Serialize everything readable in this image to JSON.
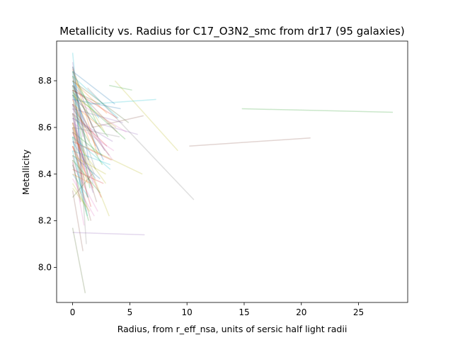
{
  "chart_data": {
    "type": "line",
    "title": "Metallicity vs. Radius for C17_O3N2_smc from dr17 (95 galaxies)",
    "xlabel": "Radius, from r_eff_nsa, units of sersic half light radii",
    "ylabel": "Metallicity",
    "xlim": [
      -1.4,
      29.3
    ],
    "ylim": [
      7.85,
      8.97
    ],
    "xticks": [
      0,
      5,
      10,
      15,
      20,
      25
    ],
    "yticks": [
      8.0,
      8.2,
      8.4,
      8.6,
      8.8
    ],
    "grid": false,
    "legend": false,
    "series_count": 95,
    "line_alpha": 0.25,
    "colors": [
      "#1f77b4",
      "#ff7f0e",
      "#2ca02c",
      "#d62728",
      "#9467bd",
      "#8c564b",
      "#e377c2",
      "#7f7f7f",
      "#bcbd22",
      "#17becf",
      "#556b2f"
    ],
    "series": [
      {
        "x": [
          14.8,
          28.0
        ],
        "y": [
          8.68,
          8.665
        ],
        "color": "#2ca02c"
      },
      {
        "x": [
          10.2,
          20.8
        ],
        "y": [
          8.52,
          8.555
        ],
        "color": "#8c564b"
      },
      {
        "x": [
          3.7,
          9.2
        ],
        "y": [
          8.8,
          8.5
        ],
        "color": "#bcbd22"
      },
      {
        "x": [
          1.3,
          10.6
        ],
        "y": [
          8.77,
          8.29
        ],
        "color": "#7f7f7f"
      },
      {
        "x": [
          0.0,
          6.3
        ],
        "y": [
          8.15,
          8.14
        ],
        "color": "#9467bd"
      },
      {
        "x": [
          1.5,
          7.3
        ],
        "y": [
          8.7,
          8.72
        ],
        "color": "#17becf"
      },
      {
        "x": [
          3.2,
          5.2
        ],
        "y": [
          8.78,
          8.76
        ],
        "color": "#2ca02c"
      },
      {
        "x": [
          1.0,
          6.1
        ],
        "y": [
          8.52,
          8.4
        ],
        "color": "#bcbd22"
      },
      {
        "x": [
          2.0,
          5.7
        ],
        "y": [
          8.62,
          8.57
        ],
        "color": "#9467bd"
      },
      {
        "x": [
          1.7,
          6.2
        ],
        "y": [
          8.6,
          8.65
        ],
        "color": "#8c564b"
      },
      {
        "x": [
          0.0,
          1.1
        ],
        "y": [
          8.17,
          7.89
        ],
        "color": "#556b2f"
      },
      {
        "x": [
          0.0,
          0.9
        ],
        "y": [
          8.33,
          8.07
        ],
        "color": "#8c564b"
      },
      {
        "x": [
          0.2,
          1.2
        ],
        "y": [
          8.78,
          8.1
        ],
        "color": "#7f7f7f"
      },
      {
        "x": [
          0.0,
          0.6
        ],
        "y": [
          8.92,
          8.62
        ],
        "color": "#17becf"
      },
      {
        "x": [
          0.1,
          3.2
        ],
        "y": [
          8.6,
          8.22
        ],
        "color": "#bcbd22"
      },
      {
        "x": [
          0.0,
          4.6
        ],
        "y": [
          8.75,
          8.55
        ],
        "color": "#2ca02c"
      },
      {
        "x": [
          0.0,
          1.6
        ],
        "y": [
          8.52,
          8.26
        ],
        "color": "#d62728"
      },
      {
        "x": [
          0.0,
          2.4
        ],
        "y": [
          8.48,
          8.38
        ],
        "color": "#1f77b4"
      },
      {
        "x": [
          0.0,
          3.5
        ],
        "y": [
          8.7,
          8.46
        ],
        "color": "#e377c2"
      },
      {
        "x": [
          0.0,
          2.0
        ],
        "y": [
          8.76,
          8.52
        ],
        "color": "#ff7f0e"
      },
      {
        "x": [
          0.0,
          4.9
        ],
        "y": [
          8.8,
          8.62
        ],
        "color": "#556b2f"
      },
      {
        "x": [
          0.0,
          1.8
        ],
        "y": [
          8.64,
          8.36
        ],
        "color": "#9467bd"
      },
      {
        "x": [
          0.0,
          0.7
        ],
        "y": [
          8.84,
          8.5
        ],
        "color": "#1f77b4"
      },
      {
        "x": [
          0.0,
          2.6
        ],
        "y": [
          8.58,
          8.48
        ],
        "color": "#2ca02c"
      },
      {
        "x": [
          0.0,
          3.9
        ],
        "y": [
          8.78,
          8.58
        ],
        "color": "#8c564b"
      },
      {
        "x": [
          0.0,
          1.4
        ],
        "y": [
          8.4,
          8.3
        ],
        "color": "#17becf"
      },
      {
        "x": [
          0.0,
          2.2
        ],
        "y": [
          8.85,
          8.48
        ],
        "color": "#ff7f0e"
      },
      {
        "x": [
          0.0,
          1.2
        ],
        "y": [
          8.56,
          8.24
        ],
        "color": "#7f7f7f"
      },
      {
        "x": [
          0.0,
          3.0
        ],
        "y": [
          8.66,
          8.52
        ],
        "color": "#d62728"
      },
      {
        "x": [
          0.0,
          4.2
        ],
        "y": [
          8.72,
          8.68
        ],
        "color": "#1f77b4"
      },
      {
        "x": [
          0.0,
          1.0
        ],
        "y": [
          8.45,
          8.18
        ],
        "color": "#e377c2"
      },
      {
        "x": [
          0.0,
          2.8
        ],
        "y": [
          8.82,
          8.58
        ],
        "color": "#bcbd22"
      },
      {
        "x": [
          0.0,
          1.7
        ],
        "y": [
          8.3,
          8.4
        ],
        "color": "#556b2f"
      },
      {
        "x": [
          0.0,
          0.9
        ],
        "y": [
          8.88,
          8.56
        ],
        "color": "#9467bd"
      },
      {
        "x": [
          0.0,
          3.3
        ],
        "y": [
          8.5,
          8.44
        ],
        "color": "#17becf"
      },
      {
        "x": [
          0.0,
          2.1
        ],
        "y": [
          8.62,
          8.28
        ],
        "color": "#8c564b"
      },
      {
        "x": [
          0.0,
          1.5
        ],
        "y": [
          8.78,
          8.34
        ],
        "color": "#2ca02c"
      },
      {
        "x": [
          0.0,
          2.5
        ],
        "y": [
          8.7,
          8.6
        ],
        "color": "#ff7f0e"
      },
      {
        "x": [
          0.0,
          1.1
        ],
        "y": [
          8.6,
          8.44
        ],
        "color": "#d62728"
      },
      {
        "x": [
          0.0,
          3.7
        ],
        "y": [
          8.84,
          8.7
        ],
        "color": "#1f77b4"
      },
      {
        "x": [
          0.0,
          1.9
        ],
        "y": [
          8.38,
          8.22
        ],
        "color": "#e377c2"
      },
      {
        "x": [
          0.0,
          0.8
        ],
        "y": [
          8.74,
          8.4
        ],
        "color": "#7f7f7f"
      },
      {
        "x": [
          0.0,
          2.9
        ],
        "y": [
          8.56,
          8.36
        ],
        "color": "#bcbd22"
      },
      {
        "x": [
          0.0,
          1.3
        ],
        "y": [
          8.66,
          8.3
        ],
        "color": "#556b2f"
      },
      {
        "x": [
          0.0,
          4.4
        ],
        "y": [
          8.68,
          8.62
        ],
        "color": "#9467bd"
      },
      {
        "x": [
          0.0,
          2.3
        ],
        "y": [
          8.8,
          8.64
        ],
        "color": "#17becf"
      },
      {
        "x": [
          0.0,
          1.6
        ],
        "y": [
          8.48,
          8.2
        ],
        "color": "#8c564b"
      },
      {
        "x": [
          0.0,
          3.1
        ],
        "y": [
          8.74,
          8.56
        ],
        "color": "#2ca02c"
      },
      {
        "x": [
          0.0,
          1.0
        ],
        "y": [
          8.52,
          8.38
        ],
        "color": "#ff7f0e"
      },
      {
        "x": [
          0.0,
          2.7
        ],
        "y": [
          8.42,
          8.36
        ],
        "color": "#d62728"
      },
      {
        "x": [
          0.0,
          1.4
        ],
        "y": [
          8.86,
          8.46
        ],
        "color": "#1f77b4"
      },
      {
        "x": [
          0.0,
          3.6
        ],
        "y": [
          8.62,
          8.5
        ],
        "color": "#e377c2"
      },
      {
        "x": [
          0.0,
          2.0
        ],
        "y": [
          8.7,
          8.42
        ],
        "color": "#7f7f7f"
      },
      {
        "x": [
          0.0,
          1.2
        ],
        "y": [
          8.36,
          8.26
        ],
        "color": "#bcbd22"
      },
      {
        "x": [
          0.0,
          2.4
        ],
        "y": [
          8.76,
          8.7
        ],
        "color": "#556b2f"
      },
      {
        "x": [
          0.0,
          1.8
        ],
        "y": [
          8.58,
          8.32
        ],
        "color": "#9467bd"
      },
      {
        "x": [
          0.0,
          4.0
        ],
        "y": [
          8.82,
          8.64
        ],
        "color": "#17becf"
      },
      {
        "x": [
          0.0,
          0.7
        ],
        "y": [
          8.46,
          8.28
        ],
        "color": "#8c564b"
      },
      {
        "x": [
          0.0,
          2.6
        ],
        "y": [
          8.66,
          8.44
        ],
        "color": "#2ca02c"
      },
      {
        "x": [
          0.0,
          1.5
        ],
        "y": [
          8.72,
          8.54
        ],
        "color": "#ff7f0e"
      },
      {
        "x": [
          0.0,
          3.4
        ],
        "y": [
          8.54,
          8.46
        ],
        "color": "#d62728"
      },
      {
        "x": [
          0.0,
          1.1
        ],
        "y": [
          8.8,
          8.6
        ],
        "color": "#1f77b4"
      },
      {
        "x": [
          0.0,
          2.2
        ],
        "y": [
          8.44,
          8.24
        ],
        "color": "#e377c2"
      },
      {
        "x": [
          0.0,
          1.7
        ],
        "y": [
          8.64,
          8.58
        ],
        "color": "#7f7f7f"
      },
      {
        "x": [
          0.0,
          3.8
        ],
        "y": [
          8.74,
          8.6
        ],
        "color": "#bcbd22"
      },
      {
        "x": [
          0.0,
          0.9
        ],
        "y": [
          8.6,
          8.34
        ],
        "color": "#556b2f"
      },
      {
        "x": [
          0.0,
          2.8
        ],
        "y": [
          8.78,
          8.5
        ],
        "color": "#9467bd"
      },
      {
        "x": [
          0.0,
          1.3
        ],
        "y": [
          8.5,
          8.22
        ],
        "color": "#17becf"
      },
      {
        "x": [
          0.0,
          3.2
        ],
        "y": [
          8.68,
          8.48
        ],
        "color": "#8c564b"
      },
      {
        "x": [
          0.0,
          2.1
        ],
        "y": [
          8.84,
          8.62
        ],
        "color": "#2ca02c"
      },
      {
        "x": [
          0.0,
          1.6
        ],
        "y": [
          8.4,
          8.36
        ],
        "color": "#ff7f0e"
      },
      {
        "x": [
          0.0,
          2.5
        ],
        "y": [
          8.58,
          8.3
        ],
        "color": "#d62728"
      },
      {
        "x": [
          0.0,
          1.0
        ],
        "y": [
          8.76,
          8.44
        ],
        "color": "#1f77b4"
      },
      {
        "x": [
          0.0,
          4.7
        ],
        "y": [
          8.72,
          8.58
        ],
        "color": "#e377c2"
      },
      {
        "x": [
          0.0,
          1.9
        ],
        "y": [
          8.62,
          8.4
        ],
        "color": "#7f7f7f"
      },
      {
        "x": [
          0.0,
          2.9
        ],
        "y": [
          8.48,
          8.4
        ],
        "color": "#bcbd22"
      },
      {
        "x": [
          0.0,
          1.2
        ],
        "y": [
          8.82,
          8.52
        ],
        "color": "#556b2f"
      },
      {
        "x": [
          0.0,
          3.5
        ],
        "y": [
          8.64,
          8.54
        ],
        "color": "#9467bd"
      },
      {
        "x": [
          0.0,
          0.8
        ],
        "y": [
          8.56,
          8.32
        ],
        "color": "#17becf"
      },
      {
        "x": [
          0.0,
          2.3
        ],
        "y": [
          8.7,
          8.5
        ],
        "color": "#8c564b"
      },
      {
        "x": [
          0.0,
          1.4
        ],
        "y": [
          8.44,
          8.2
        ],
        "color": "#2ca02c"
      },
      {
        "x": [
          0.0,
          3.0
        ],
        "y": [
          8.8,
          8.66
        ],
        "color": "#ff7f0e"
      },
      {
        "x": [
          0.0,
          1.8
        ],
        "y": [
          8.52,
          8.34
        ],
        "color": "#d62728"
      },
      {
        "x": [
          0.0,
          2.7
        ],
        "y": [
          8.74,
          8.46
        ],
        "color": "#1f77b4"
      },
      {
        "x": [
          0.0,
          1.1
        ],
        "y": [
          8.66,
          8.42
        ],
        "color": "#e377c2"
      },
      {
        "x": [
          0.0,
          4.1
        ],
        "y": [
          8.6,
          8.56
        ],
        "color": "#7f7f7f"
      },
      {
        "x": [
          0.0,
          1.5
        ],
        "y": [
          8.34,
          8.24
        ],
        "color": "#bcbd22"
      },
      {
        "x": [
          0.0,
          2.2
        ],
        "y": [
          8.78,
          8.56
        ],
        "color": "#556b2f"
      },
      {
        "x": [
          0.0,
          0.9
        ],
        "y": [
          8.7,
          8.36
        ],
        "color": "#9467bd"
      },
      {
        "x": [
          0.0,
          3.3
        ],
        "y": [
          8.56,
          8.42
        ],
        "color": "#17becf"
      },
      {
        "x": [
          0.0,
          1.7
        ],
        "y": [
          8.86,
          8.6
        ],
        "color": "#8c564b"
      },
      {
        "x": [
          0.0,
          2.4
        ],
        "y": [
          8.46,
          8.32
        ],
        "color": "#2ca02c"
      },
      {
        "x": [
          0.0,
          1.3
        ],
        "y": [
          8.62,
          8.36
        ],
        "color": "#ff7f0e"
      },
      {
        "x": [
          0.0,
          3.9
        ],
        "y": [
          8.76,
          8.64
        ],
        "color": "#d62728"
      },
      {
        "x": [
          0.0,
          2.0
        ],
        "y": [
          8.54,
          8.38
        ],
        "color": "#1f77b4"
      }
    ]
  }
}
